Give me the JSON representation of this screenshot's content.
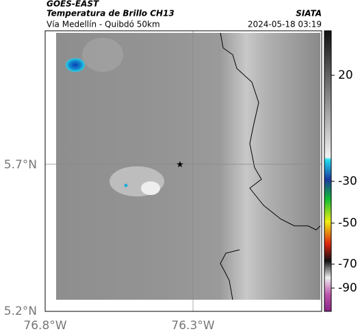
{
  "header": {
    "source": "GOES-EAST",
    "title": "Temperatura de Brillo CH13",
    "credit": "SIATA",
    "subtitle": "Vía Medellín - Quibdó 50km",
    "timestamp": "2024-05-18 03:19"
  },
  "axes": {
    "lat_labels": [
      "5.7°N",
      "5.2°N"
    ],
    "lon_labels": [
      "76.8°W",
      "76.3°W"
    ]
  },
  "colorbar": {
    "labels": [
      "20",
      "-30",
      "-50",
      "-70",
      "-90"
    ]
  }
}
